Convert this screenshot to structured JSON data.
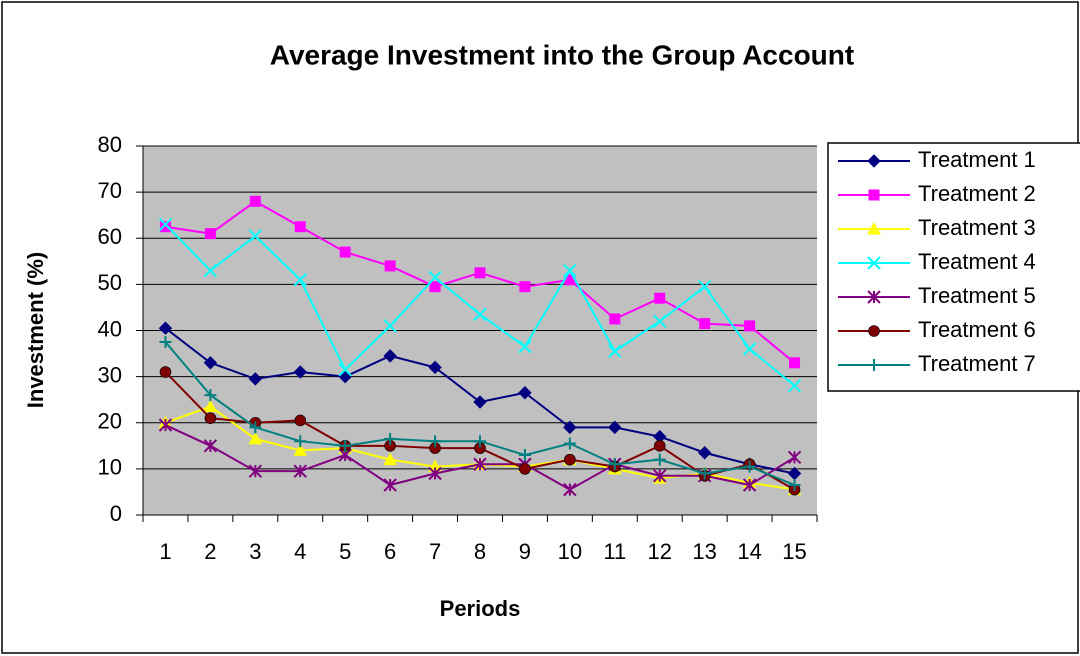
{
  "chart_data": {
    "type": "line",
    "title": "Average Investment into the Group Account",
    "x_label": "Periods",
    "y_label": "Investment (%)",
    "categories": [
      "1",
      "2",
      "3",
      "4",
      "5",
      "6",
      "7",
      "8",
      "9",
      "10",
      "11",
      "12",
      "13",
      "14",
      "15"
    ],
    "ylim": [
      0,
      80
    ],
    "yticks": [
      0,
      10,
      20,
      30,
      40,
      50,
      60,
      70,
      80
    ],
    "grid": true,
    "legend": "right",
    "series": [
      {
        "name": "Treatment 1",
        "color": "#000080",
        "marker": "diamond",
        "values": [
          40.5,
          33,
          29.5,
          31,
          30,
          34.5,
          32,
          24.5,
          26.5,
          19,
          19,
          17,
          13.5,
          11,
          9
        ]
      },
      {
        "name": "Treatment 2",
        "color": "#FF00FF",
        "marker": "square",
        "values": [
          62.5,
          61,
          68,
          62.5,
          57,
          54,
          49.5,
          52.5,
          49.5,
          51,
          42.5,
          47,
          41.5,
          41,
          33
        ]
      },
      {
        "name": "Treatment 3",
        "color": "#FFFF00",
        "marker": "triangle",
        "values": [
          20,
          23.5,
          16.5,
          14,
          14.5,
          12,
          10.5,
          11,
          10.5,
          12,
          10,
          8,
          9,
          7,
          5.5
        ]
      },
      {
        "name": "Treatment 4",
        "color": "#00FFFF",
        "marker": "x",
        "values": [
          63,
          53,
          60.5,
          51,
          31.5,
          41,
          51.5,
          43.5,
          36.5,
          53,
          35.5,
          42,
          49.5,
          36,
          28
        ]
      },
      {
        "name": "Treatment 5",
        "color": "#800080",
        "marker": "star",
        "values": [
          19.5,
          15,
          9.5,
          9.5,
          13,
          6.5,
          9,
          11,
          11,
          5.5,
          11,
          8.5,
          8.5,
          6.5,
          12.5
        ]
      },
      {
        "name": "Treatment 6",
        "color": "#800000",
        "marker": "circle",
        "values": [
          31,
          21,
          20,
          20.5,
          15,
          15,
          14.5,
          14.5,
          10,
          12,
          10.5,
          15,
          8.5,
          11,
          5.5
        ]
      },
      {
        "name": "Treatment 7",
        "color": "#008080",
        "marker": "plus",
        "values": [
          37.5,
          26,
          19,
          16,
          15,
          16.5,
          16,
          16,
          13,
          15.5,
          11,
          12,
          9,
          10.5,
          6.5
        ]
      }
    ]
  }
}
